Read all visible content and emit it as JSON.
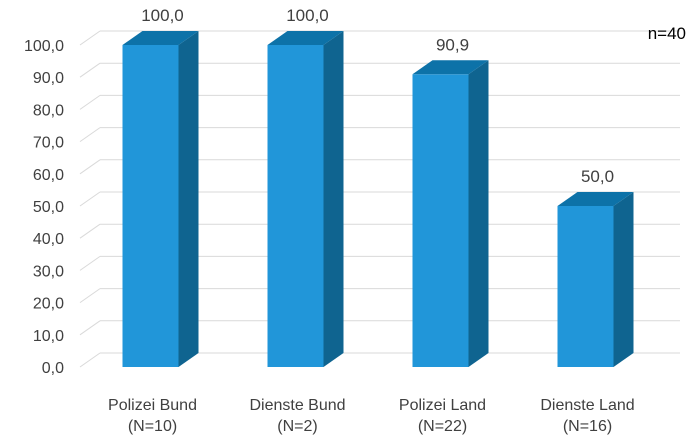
{
  "chart_data": {
    "type": "bar",
    "style": "3d-column",
    "categories": [
      [
        "Polizei Bund",
        "(N=10)"
      ],
      [
        "Dienste Bund",
        "(N=2)"
      ],
      [
        "Polizei Land",
        "(N=22)"
      ],
      [
        "Dienste Land",
        "(N=16)"
      ]
    ],
    "values": [
      100.0,
      100.0,
      90.9,
      50.0
    ],
    "value_labels": [
      "100,0",
      "100,0",
      "90,9",
      "50,0"
    ],
    "y_ticks": [
      "0,0",
      "10,0",
      "20,0",
      "30,0",
      "40,0",
      "50,0",
      "60,0",
      "70,0",
      "80,0",
      "90,0",
      "100,0"
    ],
    "ylim": [
      0,
      100
    ],
    "grid": true,
    "annotation": "n=40",
    "colors": {
      "bar_front": "#2196d9",
      "bar_side": "#0f6490",
      "bar_top": "#0d72a8",
      "grid": "#d9d9d9",
      "text": "#404040"
    }
  }
}
